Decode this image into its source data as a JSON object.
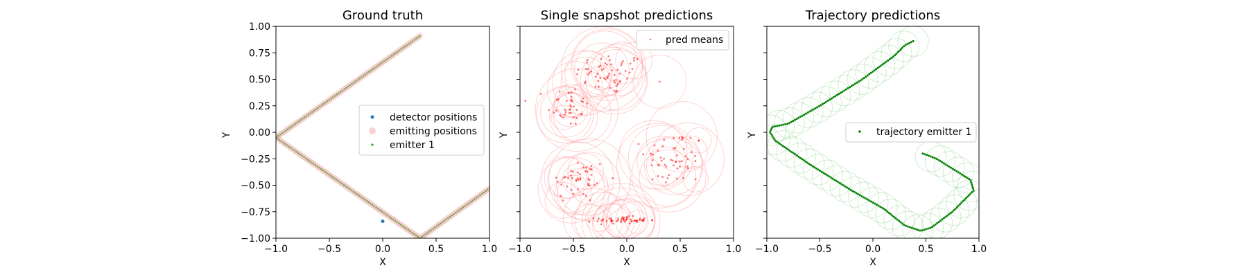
{
  "chart_data": [
    {
      "type": "scatter",
      "title": "Ground truth",
      "xlabel": "X",
      "ylabel": "Y",
      "xlim": [
        -1.0,
        1.0
      ],
      "ylim": [
        -1.0,
        1.0
      ],
      "xticks": [
        "−1.0",
        "−0.5",
        "0.0",
        "0.5",
        "1.0"
      ],
      "yticks": [
        "1.00",
        "0.75",
        "0.50",
        "0.25",
        "0.00",
        "−0.25",
        "−0.50",
        "−0.75",
        "−1.00"
      ],
      "legend_position": "center-right",
      "series": [
        {
          "name": "detector positions",
          "color": "#1f77b4",
          "points": [
            [
              0.0,
              -0.84
            ]
          ]
        },
        {
          "name": "emitting positions",
          "color": "#f4a6a6",
          "path": [
            [
              0.35,
              0.91
            ],
            [
              -1.0,
              -0.05
            ],
            [
              0.35,
              -1.0
            ],
            [
              1.0,
              -0.53
            ]
          ]
        },
        {
          "name": "emitter 1",
          "color": "#2ca02c",
          "path": [
            [
              0.35,
              0.91
            ],
            [
              -1.0,
              -0.05
            ],
            [
              0.35,
              -1.0
            ],
            [
              1.0,
              -0.53
            ]
          ]
        }
      ]
    },
    {
      "type": "scatter",
      "title": "Single snapshot predictions",
      "xlabel": "X",
      "ylabel": "Y",
      "xlim": [
        -1.0,
        1.0
      ],
      "ylim": [
        -1.0,
        1.0
      ],
      "xticks": [
        "−1.0",
        "−0.5",
        "0.0",
        "0.5",
        "1.0"
      ],
      "yticks": [
        "",
        "",
        "",
        "",
        "",
        "",
        "",
        "",
        ""
      ],
      "legend_position": "top-right",
      "series": [
        {
          "name": "pred means",
          "color": "#ff0000",
          "clusters": [
            {
              "center": [
                -0.15,
                0.55
              ],
              "spread": [
                0.3,
                0.18
              ],
              "count": 60
            },
            {
              "center": [
                -0.55,
                0.25
              ],
              "spread": [
                0.18,
                0.18
              ],
              "count": 40
            },
            {
              "center": [
                -0.45,
                -0.45
              ],
              "spread": [
                0.25,
                0.2
              ],
              "count": 45
            },
            {
              "center": [
                0.45,
                -0.25
              ],
              "spread": [
                0.25,
                0.25
              ],
              "count": 55
            },
            {
              "center": [
                -0.05,
                -0.83
              ],
              "spread": [
                0.22,
                0.03
              ],
              "count": 55
            }
          ]
        }
      ]
    },
    {
      "type": "line",
      "title": "Trajectory predictions",
      "xlabel": "X",
      "ylabel": "Y",
      "xlim": [
        -1.0,
        1.0
      ],
      "ylim": [
        -1.0,
        1.0
      ],
      "xticks": [
        "−1.0",
        "−0.5",
        "0.0",
        "0.5",
        "1.0"
      ],
      "yticks": [
        "",
        "",
        "",
        "",
        "",
        "",
        "",
        "",
        ""
      ],
      "legend_position": "center-right",
      "series": [
        {
          "name": "trajectory emitter 1",
          "color": "#008000",
          "path": [
            [
              0.38,
              0.86
            ],
            [
              0.3,
              0.82
            ],
            [
              0.2,
              0.72
            ],
            [
              -0.1,
              0.5
            ],
            [
              -0.5,
              0.25
            ],
            [
              -0.8,
              0.08
            ],
            [
              -0.95,
              0.05
            ],
            [
              -0.97,
              0.0
            ],
            [
              -0.92,
              -0.08
            ],
            [
              -0.6,
              -0.3
            ],
            [
              -0.2,
              -0.55
            ],
            [
              0.1,
              -0.72
            ],
            [
              0.3,
              -0.88
            ],
            [
              0.45,
              -0.93
            ],
            [
              0.55,
              -0.9
            ],
            [
              0.75,
              -0.75
            ],
            [
              0.95,
              -0.55
            ],
            [
              0.92,
              -0.45
            ],
            [
              0.6,
              -0.25
            ],
            [
              0.47,
              -0.2
            ]
          ]
        }
      ]
    }
  ]
}
